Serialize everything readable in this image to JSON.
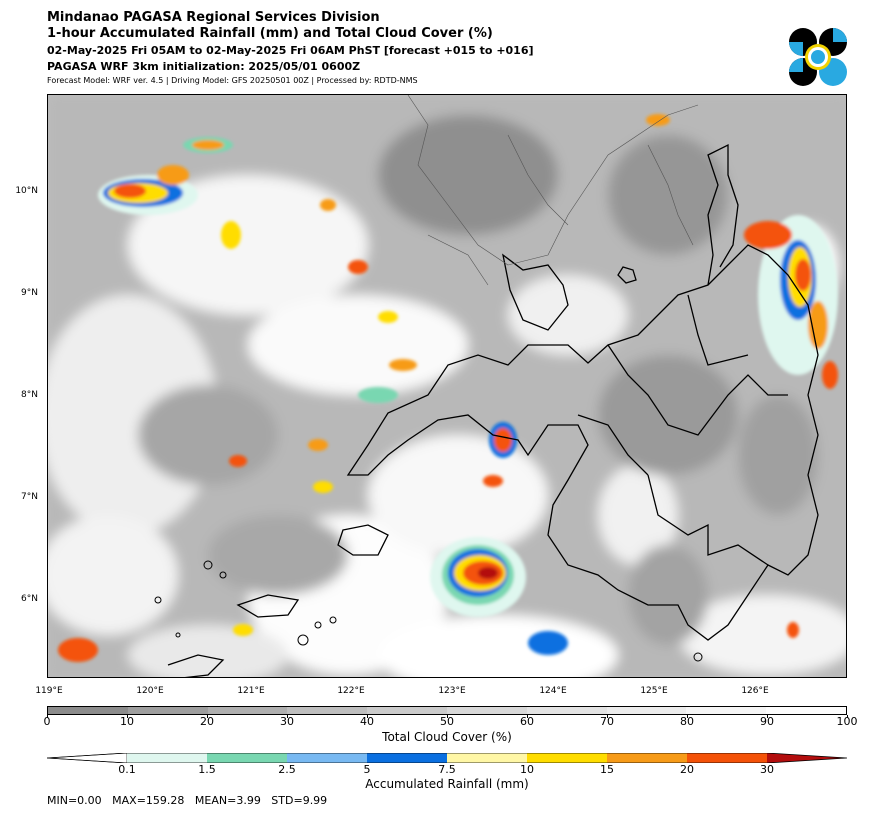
{
  "header": {
    "title_line1": "Mindanao PAGASA Regional Services Division",
    "title_line2": "1-hour Accumulated Rainfall (mm) and Total Cloud Cover (%)",
    "title_line3": "02-May-2025 Fri 05AM to 02-May-2025 Fri 06AM PhST [forecast +015 to +016]",
    "title_line4": "PAGASA WRF 3km initialization: 2025/05/01 0600Z",
    "title_line5": "Forecast Model: WRF ver. 4.5 | Driving Model: GFS 20250501 00Z | Processed by: RDTD-NMS"
  },
  "logo": {
    "icon": "pagasa-seal-icon",
    "colors": [
      "#000000",
      "#29a9e1",
      "#f2d200"
    ]
  },
  "map": {
    "lat_labels": [
      "10°N",
      "9°N",
      "8°N",
      "7°N",
      "6°N"
    ],
    "lon_labels": [
      "119°E",
      "120°E",
      "121°E",
      "122°E",
      "123°E",
      "124°E",
      "125°E",
      "126°E"
    ]
  },
  "cloud_scale": {
    "label": "Total Cloud Cover (%)",
    "ticks": [
      "0",
      "10",
      "20",
      "30",
      "40",
      "50",
      "60",
      "70",
      "80",
      "90",
      "100"
    ],
    "colors": [
      "#8c8c8c",
      "#9e9e9e",
      "#afafaf",
      "#bebebe",
      "#cbcbcb",
      "#d8d8d8",
      "#e3e3e3",
      "#ececec",
      "#f5f5f5",
      "#fcfcfc"
    ]
  },
  "rain_scale": {
    "label": "Accumulated Rainfall (mm)",
    "ticks": [
      "0.1",
      "1.5",
      "2.5",
      "5",
      "7.5",
      "10",
      "15",
      "20",
      "30"
    ],
    "colors": [
      "#ffffff",
      "#dff7ef",
      "#79d7b1",
      "#78b9f2",
      "#0a6fe0",
      "#fff7a6",
      "#ffdd00",
      "#f79b18",
      "#f45208",
      "#b30d0d"
    ]
  },
  "stats": {
    "text": "MIN=0.00   MAX=159.28   MEAN=3.99   STD=9.99"
  }
}
